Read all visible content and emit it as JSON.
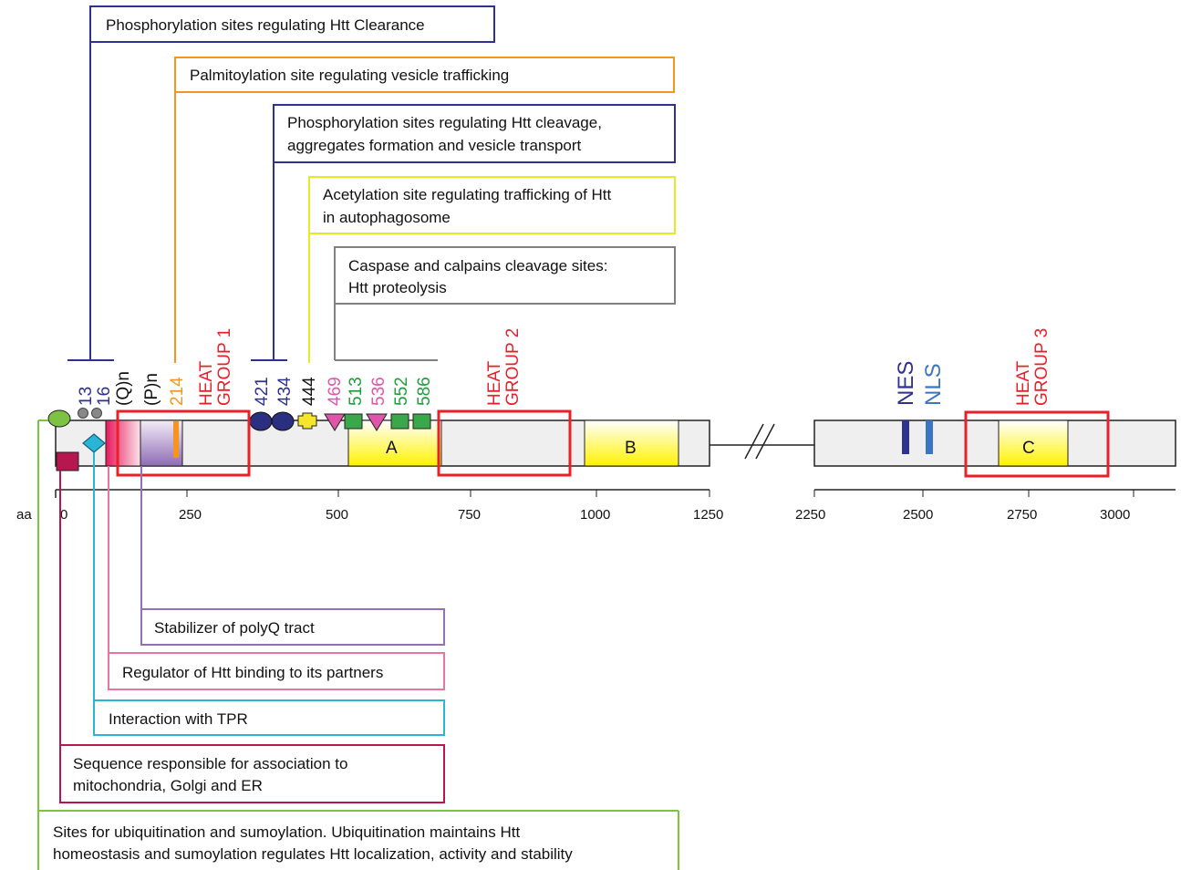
{
  "annotations": {
    "top": [
      {
        "id": "phos-clearance",
        "text": [
          "Phosphorylation sites regulating Htt Clearance"
        ],
        "color": "#2e3192"
      },
      {
        "id": "palmitoylation",
        "text": [
          "Palmitoylation site regulating vesicle trafficking"
        ],
        "color": "#f7941d"
      },
      {
        "id": "phos-cleavage",
        "text": [
          "Phosphorylation sites regulating Htt cleavage,",
          "aggregates formation and vesicle transport"
        ],
        "color": "#2e3192"
      },
      {
        "id": "acetylation",
        "text": [
          "Acetylation site regulating trafficking of Htt",
          "in autophagosome"
        ],
        "color": "#e8e82a"
      },
      {
        "id": "caspase",
        "text": [
          "Caspase and calpains cleavage sites:",
          "Htt proteolysis"
        ],
        "color": "#808080"
      }
    ],
    "bottom": [
      {
        "id": "polyq-stabilizer",
        "text": [
          "Stabilizer of polyQ tract"
        ],
        "color": "#9370b8"
      },
      {
        "id": "binding-regulator",
        "text": [
          "Regulator of Htt binding to its partners"
        ],
        "color": "#e8759a"
      },
      {
        "id": "tpr-interaction",
        "text": [
          "Interaction with TPR"
        ],
        "color": "#29b6d6"
      },
      {
        "id": "mito-association",
        "text": [
          "Sequence responsible for association to",
          "mitochondria, Golgi and ER"
        ],
        "color": "#b5174e"
      },
      {
        "id": "ubiquitination",
        "text": [
          "Sites for ubiquitination and sumoylation. Ubiquitination maintains Htt",
          "homeostasis and sumoylation regulates Htt localization, activity and stability"
        ],
        "color": "#7dc242"
      }
    ]
  },
  "site_labels": [
    {
      "id": "s13",
      "text": "13",
      "color": "#2e3192"
    },
    {
      "id": "s16",
      "text": "16",
      "color": "#2e3192"
    },
    {
      "id": "sQn",
      "text": "(Q)n",
      "color": "#111111"
    },
    {
      "id": "sPn",
      "text": "(P)n",
      "color": "#111111"
    },
    {
      "id": "s214",
      "text": "214",
      "color": "#f7941d"
    },
    {
      "id": "s421",
      "text": "421",
      "color": "#2e3192"
    },
    {
      "id": "s434",
      "text": "434",
      "color": "#2e3192"
    },
    {
      "id": "s444",
      "text": "444",
      "color": "#111111"
    },
    {
      "id": "s469",
      "text": "469",
      "color": "#e055a8"
    },
    {
      "id": "s513",
      "text": "513",
      "color": "#1e9e3a"
    },
    {
      "id": "s536",
      "text": "536",
      "color": "#e055a8"
    },
    {
      "id": "s552",
      "text": "552",
      "color": "#1e9e3a"
    },
    {
      "id": "s586",
      "text": "586",
      "color": "#1e9e3a"
    },
    {
      "id": "sNES",
      "text": "NES",
      "color": "#2e3192"
    },
    {
      "id": "sNLS",
      "text": "NLS",
      "color": "#3a75c4"
    }
  ],
  "heat_groups": [
    {
      "id": "heat1",
      "lines": [
        "HEAT",
        "GROUP 1"
      ],
      "color": "#e8202a"
    },
    {
      "id": "heat2",
      "lines": [
        "HEAT",
        "GROUP 2"
      ],
      "color": "#e8202a"
    },
    {
      "id": "heat3",
      "lines": [
        "HEAT",
        "GROUP 3"
      ],
      "color": "#e8202a"
    }
  ],
  "domains": {
    "A": "A",
    "B": "B",
    "C": "C"
  },
  "axis": {
    "label": "aa",
    "left_ticks": [
      "0",
      "250",
      "500",
      "750",
      "1000",
      "1250"
    ],
    "right_ticks": [
      "2250",
      "2500",
      "2750",
      "3000"
    ]
  },
  "colors": {
    "protein_fill": "#efefef",
    "heat_box": "#e8202a",
    "domain_yellow": "#fff36b"
  }
}
